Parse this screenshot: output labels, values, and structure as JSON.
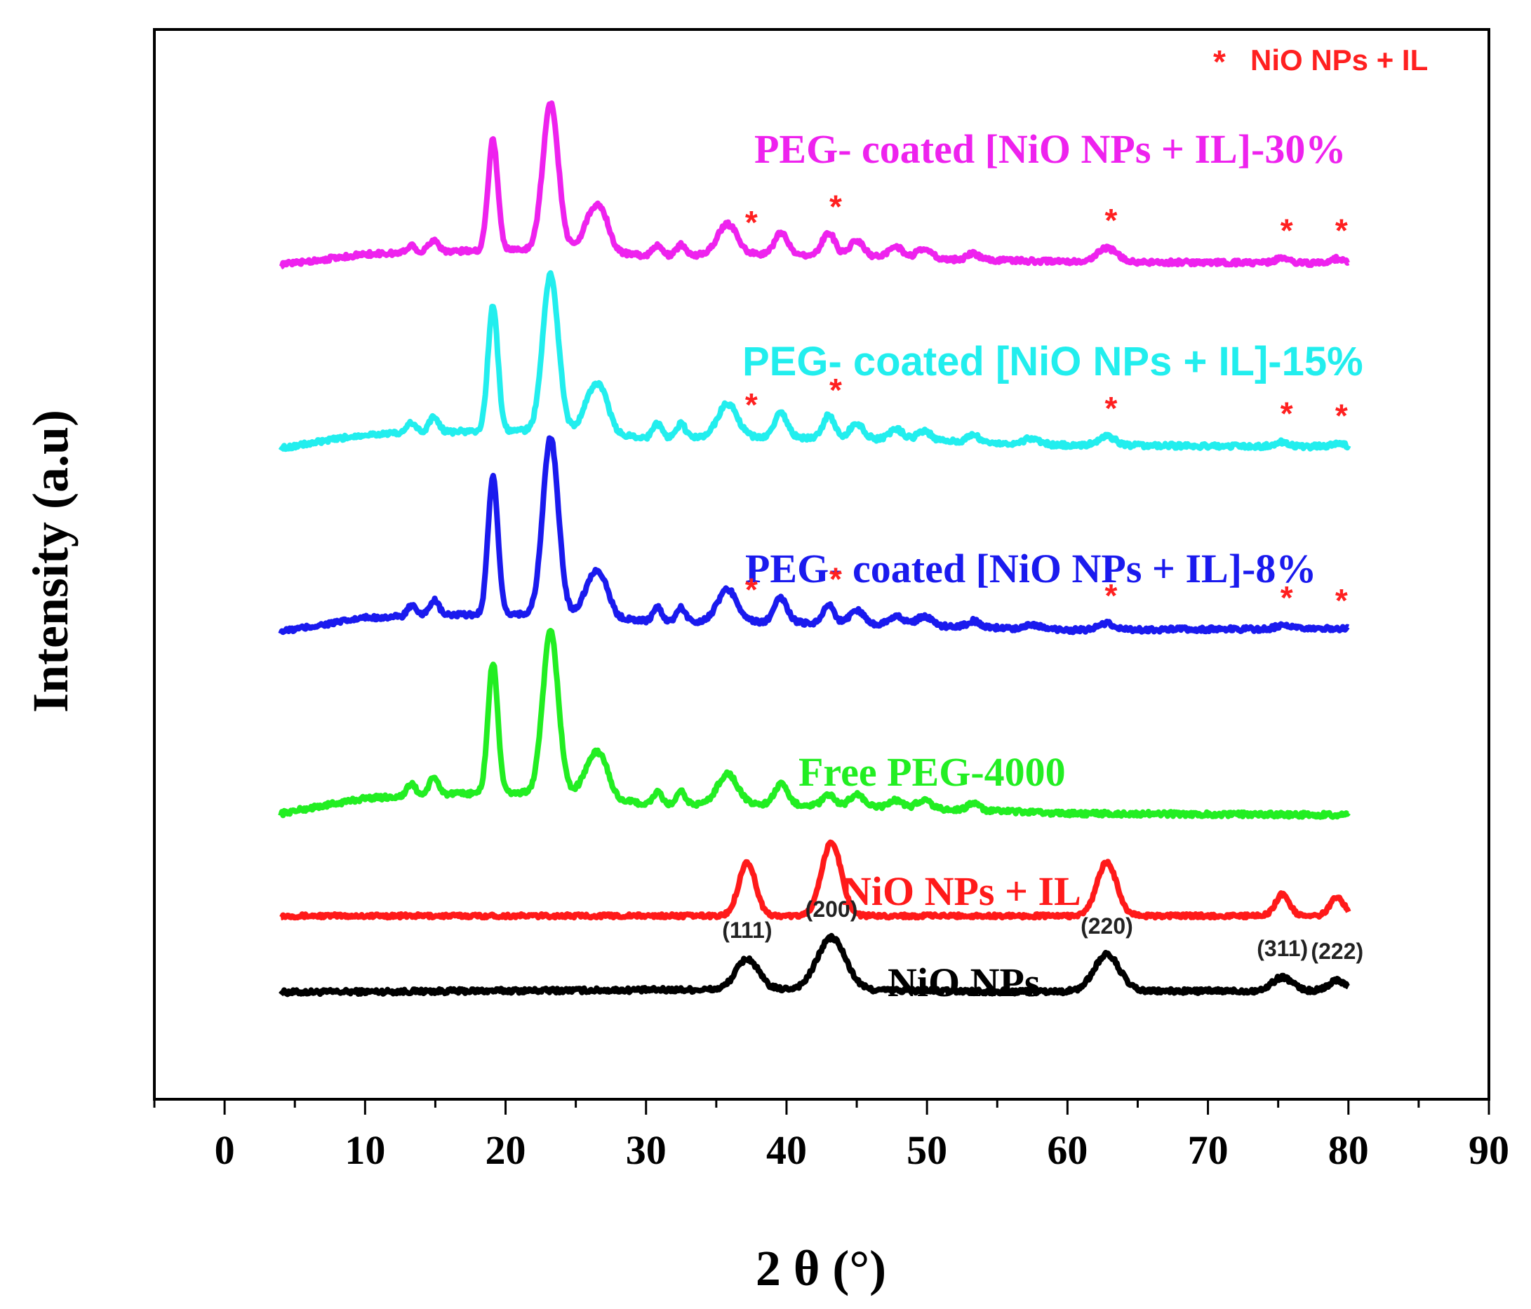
{
  "chart_data": {
    "type": "line",
    "title": "",
    "xlabel": "2 θ (°)",
    "ylabel": "Intensity (a.u)",
    "xlim": [
      -5,
      90
    ],
    "xticks": [
      "0",
      "10",
      "20",
      "30",
      "40",
      "50",
      "60",
      "70",
      "80",
      "90"
    ],
    "xtick_values": [
      0,
      10,
      20,
      30,
      40,
      50,
      60,
      70,
      80,
      90
    ],
    "y_ticks_shown": false,
    "legend": {
      "marker": "*",
      "label": "NiO NPs + IL",
      "color": "#ff2020",
      "placement": "top-right"
    },
    "series": [
      {
        "id": "nio",
        "name": "NiO NPs",
        "color": "#000000",
        "offset": 0.0,
        "background": [
          [
            4,
            0
          ],
          [
            20,
            0.1
          ],
          [
            30,
            0.15
          ],
          [
            40,
            0.2
          ],
          [
            55,
            0.05
          ],
          [
            80,
            0.1
          ]
        ],
        "peaks": [
          [
            37.2,
            2.0,
            0.8
          ],
          [
            43.2,
            3.4,
            1.0
          ],
          [
            62.8,
            2.4,
            0.9
          ],
          [
            75.3,
            0.9,
            0.7
          ],
          [
            79.2,
            0.7,
            0.6
          ]
        ],
        "noise": 0.15,
        "label": "NiO NPs",
        "hkl": [
          {
            "x": 37.2,
            "text": "(111)"
          },
          {
            "x": 43.2,
            "text": "(200)"
          },
          {
            "x": 62.8,
            "text": "(220)"
          },
          {
            "x": 75.3,
            "text": "(311)"
          },
          {
            "x": 79.2,
            "text": "(222)"
          }
        ]
      },
      {
        "id": "nio_il",
        "name": "NiO NPs + IL",
        "color": "#ff1a1a",
        "offset": 5.0,
        "background": [
          [
            4,
            0
          ],
          [
            80,
            0
          ]
        ],
        "peaks": [
          [
            37.2,
            3.5,
            0.6
          ],
          [
            43.2,
            4.8,
            0.7
          ],
          [
            62.8,
            3.5,
            0.7
          ],
          [
            75.3,
            1.4,
            0.5
          ],
          [
            79.2,
            1.2,
            0.5
          ]
        ],
        "noise": 0.12,
        "label": "NiO NPs + IL",
        "markers": []
      },
      {
        "id": "peg",
        "name": "Free PEG-4000",
        "color": "#22ee22",
        "offset": 11.5,
        "background": [
          [
            4,
            0.2
          ],
          [
            10,
            1.2
          ],
          [
            17,
            1.5
          ],
          [
            25,
            1.6
          ],
          [
            30,
            0.8
          ],
          [
            40,
            0.8
          ],
          [
            50,
            0.5
          ],
          [
            60,
            0.2
          ],
          [
            80,
            0.1
          ]
        ],
        "peaks": [
          [
            13.3,
            0.8,
            0.3
          ],
          [
            14.9,
            1.1,
            0.35
          ],
          [
            19.1,
            8.5,
            0.35
          ],
          [
            23.2,
            10.5,
            0.55
          ],
          [
            26.2,
            2.2,
            0.6
          ],
          [
            27.0,
            1.5,
            0.5
          ],
          [
            30.8,
            0.8,
            0.3
          ],
          [
            32.5,
            0.8,
            0.3
          ],
          [
            35.8,
            2.0,
            0.7
          ],
          [
            39.6,
            1.3,
            0.45
          ],
          [
            43.0,
            0.7,
            0.4
          ],
          [
            45.0,
            0.8,
            0.5
          ],
          [
            47.8,
            0.5,
            0.5
          ],
          [
            49.8,
            0.6,
            0.5
          ],
          [
            53.3,
            0.5,
            0.4
          ]
        ],
        "noise": 0.15,
        "label": "Free PEG-4000",
        "markers": []
      },
      {
        "id": "peg8",
        "name": "PEG- coated [NiO NPs + IL]-8%",
        "color": "#1a1aee",
        "offset": 23.5,
        "background": [
          [
            4,
            0.1
          ],
          [
            10,
            1.0
          ],
          [
            17,
            1.2
          ],
          [
            25,
            1.3
          ],
          [
            30,
            0.8
          ],
          [
            40,
            0.7
          ],
          [
            50,
            0.5
          ],
          [
            60,
            0.2
          ],
          [
            80,
            0.3
          ]
        ],
        "peaks": [
          [
            13.3,
            0.7,
            0.3
          ],
          [
            14.9,
            1.0,
            0.35
          ],
          [
            19.1,
            9.0,
            0.35
          ],
          [
            23.2,
            11.5,
            0.55
          ],
          [
            26.2,
            2.3,
            0.6
          ],
          [
            27.0,
            1.5,
            0.5
          ],
          [
            30.8,
            0.9,
            0.3
          ],
          [
            32.5,
            0.9,
            0.3
          ],
          [
            35.8,
            2.1,
            0.7
          ],
          [
            39.6,
            1.6,
            0.45
          ],
          [
            43.0,
            1.2,
            0.4
          ],
          [
            45.0,
            0.9,
            0.5
          ],
          [
            47.8,
            0.6,
            0.5
          ],
          [
            49.8,
            0.6,
            0.5
          ],
          [
            53.3,
            0.4,
            0.4
          ],
          [
            57.5,
            0.3,
            0.5
          ],
          [
            62.8,
            0.4,
            0.6
          ],
          [
            75.3,
            0.2,
            0.5
          ]
        ],
        "noise": 0.15,
        "label": "PEG- coated [NiO NPs + IL]-8%",
        "markers": [
          37.2,
          43.2,
          62.8,
          75.3,
          79.2
        ]
      },
      {
        "id": "peg15",
        "name": "PEG- coated [NiO NPs + IL]-15%",
        "color": "#22eeee",
        "offset": 35.5,
        "background": [
          [
            4,
            0.1
          ],
          [
            10,
            1.0
          ],
          [
            17,
            1.2
          ],
          [
            25,
            1.3
          ],
          [
            30,
            0.8
          ],
          [
            40,
            0.8
          ],
          [
            50,
            0.6
          ],
          [
            60,
            0.3
          ],
          [
            80,
            0.2
          ]
        ],
        "peaks": [
          [
            13.3,
            0.7,
            0.3
          ],
          [
            14.9,
            1.0,
            0.35
          ],
          [
            19.1,
            8.2,
            0.35
          ],
          [
            23.2,
            10.2,
            0.55
          ],
          [
            26.2,
            2.5,
            0.6
          ],
          [
            27.0,
            1.6,
            0.5
          ],
          [
            30.8,
            0.9,
            0.3
          ],
          [
            32.5,
            0.9,
            0.3
          ],
          [
            35.8,
            2.2,
            0.7
          ],
          [
            39.6,
            1.6,
            0.45
          ],
          [
            43.0,
            1.5,
            0.4
          ],
          [
            45.0,
            1.0,
            0.5
          ],
          [
            47.8,
            0.7,
            0.5
          ],
          [
            49.8,
            0.6,
            0.5
          ],
          [
            53.3,
            0.5,
            0.4
          ],
          [
            57.5,
            0.4,
            0.5
          ],
          [
            62.8,
            0.6,
            0.6
          ],
          [
            75.3,
            0.3,
            0.5
          ],
          [
            79.2,
            0.2,
            0.5
          ]
        ],
        "noise": 0.15,
        "label": "PEG- coated [NiO NPs + IL]-15%",
        "markers": [
          37.2,
          43.2,
          62.8,
          75.3,
          79.2
        ]
      },
      {
        "id": "peg30",
        "name": "PEG- coated [NiO NPs + IL]-30%",
        "color": "#ee22ee",
        "offset": 47.5,
        "background": [
          [
            4,
            0.1
          ],
          [
            10,
            0.8
          ],
          [
            17,
            1.0
          ],
          [
            25,
            1.2
          ],
          [
            30,
            0.7
          ],
          [
            40,
            0.8
          ],
          [
            50,
            0.5
          ],
          [
            60,
            0.3
          ],
          [
            80,
            0.2
          ]
        ],
        "peaks": [
          [
            13.3,
            0.5,
            0.3
          ],
          [
            14.9,
            0.8,
            0.35
          ],
          [
            19.1,
            7.2,
            0.35
          ],
          [
            23.2,
            9.5,
            0.55
          ],
          [
            26.2,
            2.3,
            0.6
          ],
          [
            27.0,
            1.6,
            0.5
          ],
          [
            30.8,
            0.7,
            0.3
          ],
          [
            32.5,
            0.7,
            0.3
          ],
          [
            35.8,
            2.0,
            0.7
          ],
          [
            39.6,
            1.4,
            0.45
          ],
          [
            43.0,
            1.5,
            0.45
          ],
          [
            45.0,
            1.0,
            0.5
          ],
          [
            47.8,
            0.7,
            0.5
          ],
          [
            49.8,
            0.7,
            0.5
          ],
          [
            53.3,
            0.4,
            0.4
          ],
          [
            62.8,
            0.9,
            0.7
          ],
          [
            75.3,
            0.3,
            0.5
          ],
          [
            79.2,
            0.3,
            0.5
          ]
        ],
        "noise": 0.15,
        "label": "PEG- coated [NiO NPs + IL]-30%",
        "markers": [
          37.2,
          43.2,
          62.8,
          75.3,
          79.2
        ]
      }
    ],
    "ylim": [
      -7,
      63
    ]
  }
}
